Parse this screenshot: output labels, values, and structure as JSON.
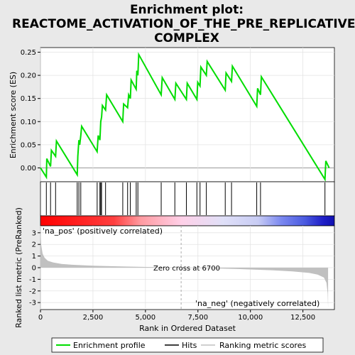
{
  "title_line1": "Enrichment plot:",
  "title_line2": "REACTOME_ACTIVATION_OF_THE_PRE_REPLICATIVE_",
  "title_line3": "COMPLEX",
  "chart_data": {
    "type": "line",
    "xlabel": "Rank in Ordered Dataset",
    "xlim": [
      0,
      14000
    ],
    "x_ticks": [
      0,
      2500,
      5000,
      7500,
      10000,
      12500
    ],
    "x_tick_labels": [
      "0",
      "2,500",
      "5,000",
      "7,500",
      "10,000",
      "12,500"
    ],
    "es_panel": {
      "ylabel": "Enrichment score (ES)",
      "ylim": [
        -0.03,
        0.26
      ],
      "y_ticks": [
        0.0,
        0.05,
        0.1,
        0.15,
        0.2,
        0.25
      ],
      "y_tick_labels": [
        "0.00",
        "0.05",
        "0.10",
        "0.15",
        "0.20",
        "0.25"
      ],
      "series_name": "Enrichment profile",
      "color": "#00dd00",
      "x": [
        0,
        280,
        300,
        480,
        520,
        720,
        760,
        1750,
        1780,
        1830,
        1870,
        1920,
        1960,
        2700,
        2750,
        2830,
        2870,
        2910,
        2950,
        3100,
        3150,
        3920,
        3960,
        4150,
        4200,
        4280,
        4320,
        4560,
        4590,
        4640,
        4680,
        5750,
        5800,
        6400,
        6450,
        6950,
        6990,
        7450,
        7490,
        7600,
        7640,
        7900,
        7940,
        8800,
        8840,
        9100,
        9140,
        10300,
        10340,
        10480,
        10520,
        13550,
        13590,
        13750
      ],
      "y": [
        0.0,
        -0.02,
        0.02,
        0.003,
        0.038,
        0.025,
        0.058,
        -0.015,
        0.025,
        0.06,
        0.05,
        0.07,
        0.09,
        0.035,
        0.07,
        0.06,
        0.1,
        0.11,
        0.135,
        0.125,
        0.158,
        0.1,
        0.138,
        0.13,
        0.158,
        0.15,
        0.19,
        0.17,
        0.21,
        0.2,
        0.245,
        0.158,
        0.195,
        0.148,
        0.183,
        0.148,
        0.183,
        0.148,
        0.185,
        0.177,
        0.218,
        0.2,
        0.23,
        0.168,
        0.205,
        0.187,
        0.22,
        0.133,
        0.172,
        0.158,
        0.197,
        -0.025,
        0.015,
        0.0
      ]
    },
    "hits": [
      280,
      480,
      720,
      1750,
      1830,
      1920,
      2700,
      2830,
      2870,
      2910,
      3100,
      3920,
      4150,
      4280,
      4560,
      4640,
      5750,
      6400,
      6950,
      7450,
      7600,
      7900,
      8800,
      9100,
      10300,
      10480,
      13550
    ],
    "heatmap_bar": {
      "stops_fraction": [
        0.0,
        0.25,
        0.34,
        0.48,
        0.62,
        0.74,
        0.82,
        0.9,
        0.96,
        1.0
      ],
      "stops_color": [
        "#ff0000",
        "#ff4040",
        "#ff9aa0",
        "#ffd0e8",
        "#e0e0f8",
        "#c8ccf4",
        "#7a88f0",
        "#4a5ae0",
        "#2020c8",
        "#1010b0"
      ]
    },
    "metric_panel": {
      "ylabel": "Ranked list metric (PreRanked)",
      "ylim": [
        -3.6,
        3.6
      ],
      "y_ticks": [
        -3,
        -2,
        -1,
        0,
        1,
        2,
        3
      ],
      "y_tick_labels": [
        "-3",
        "-2",
        "-1",
        "0",
        "1",
        "2",
        "3"
      ],
      "series_name": "Ranking metric scores",
      "x": [
        0,
        40,
        100,
        200,
        350,
        600,
        1000,
        1500,
        2500,
        4000,
        5500,
        6700,
        8000,
        9500,
        11000,
        12000,
        12800,
        13200,
        13500,
        13620,
        13680,
        13700
      ],
      "y": [
        3.1,
        1.9,
        1.2,
        0.85,
        0.6,
        0.45,
        0.32,
        0.25,
        0.17,
        0.1,
        0.04,
        0.0,
        -0.05,
        -0.12,
        -0.22,
        -0.32,
        -0.45,
        -0.6,
        -0.85,
        -1.3,
        -2.2,
        -3.5
      ],
      "zero_cross_label": "Zero cross at 6700",
      "zero_cross_x": 6700,
      "pos_label": "'na_pos' (positively correlated)",
      "neg_label": "'na_neg' (negatively correlated)"
    },
    "legend": {
      "placement": "bottom",
      "items": [
        "Enrichment profile",
        "Hits",
        "Ranking metric scores"
      ]
    },
    "colors": {
      "es_line": "#00dd00",
      "hits": "#000000",
      "metric_fill": "#c0c0c0",
      "pos_label": "#cc0000",
      "neg_label": "#0000cc",
      "zero_line": "#aaaaaa"
    }
  }
}
